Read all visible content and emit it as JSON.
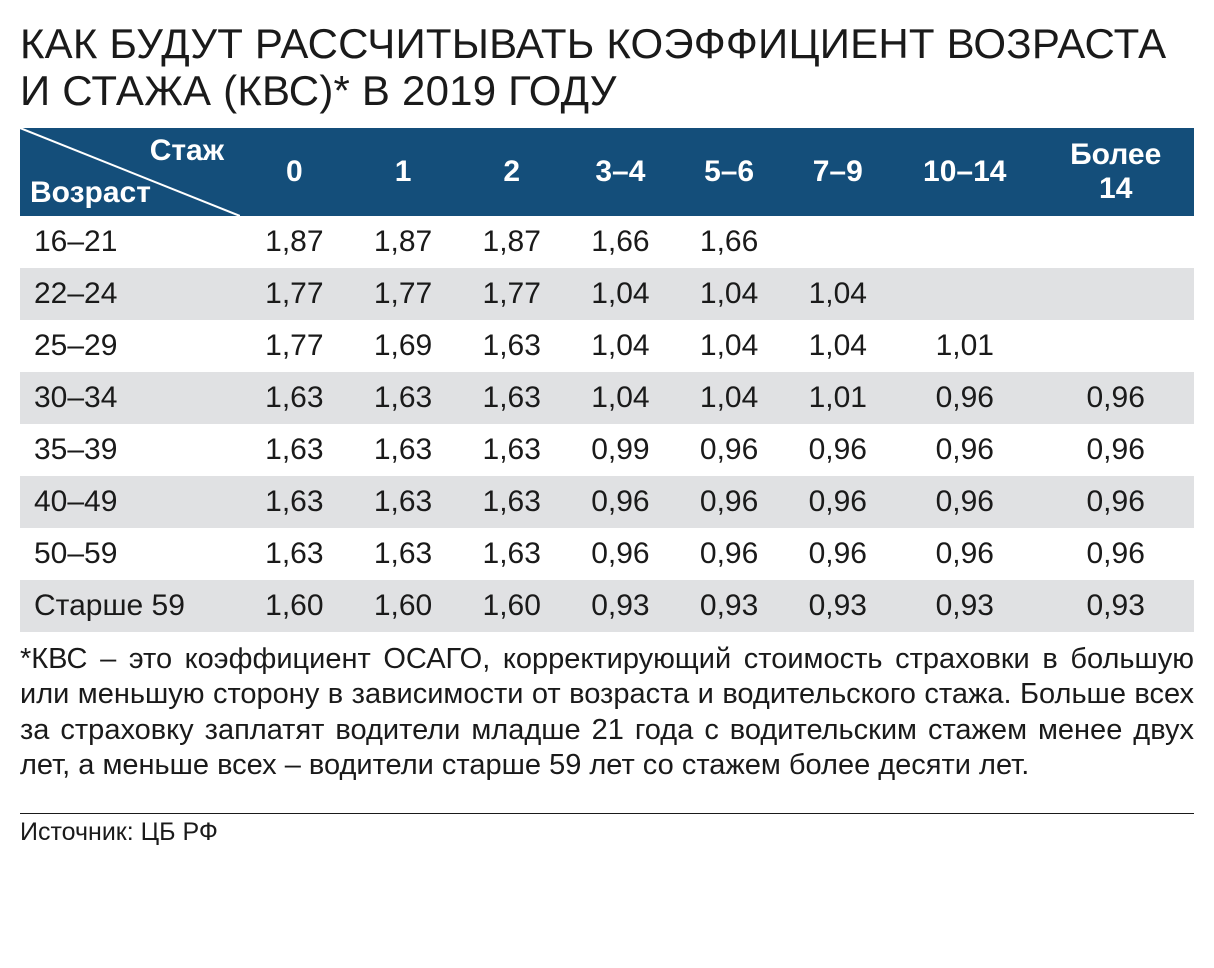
{
  "title": "КАК БУДУТ РАССЧИТЫВАТЬ КОЭФФИЦИЕНТ ВОЗРАСТА И СТАЖА (КВС)* В 2019 ГОДУ",
  "table": {
    "type": "table",
    "corner_top": "Стаж",
    "corner_bottom": "Возраст",
    "header_bg": "#144e7a",
    "header_fg": "#ffffff",
    "row_odd_bg": "#ffffff",
    "row_even_bg": "#e0e1e3",
    "columns": [
      "0",
      "1",
      "2",
      "3–4",
      "5–6",
      "7–9",
      "10–14",
      "Более 14"
    ],
    "rows": [
      {
        "label": "16–21",
        "cells": [
          "1,87",
          "1,87",
          "1,87",
          "1,66",
          "1,66",
          "",
          "",
          ""
        ]
      },
      {
        "label": "22–24",
        "cells": [
          "1,77",
          "1,77",
          "1,77",
          "1,04",
          "1,04",
          "1,04",
          "",
          ""
        ]
      },
      {
        "label": "25–29",
        "cells": [
          "1,77",
          "1,69",
          "1,63",
          "1,04",
          "1,04",
          "1,04",
          "1,01",
          ""
        ]
      },
      {
        "label": "30–34",
        "cells": [
          "1,63",
          "1,63",
          "1,63",
          "1,04",
          "1,04",
          "1,01",
          "0,96",
          "0,96"
        ]
      },
      {
        "label": "35–39",
        "cells": [
          "1,63",
          "1,63",
          "1,63",
          "0,99",
          "0,96",
          "0,96",
          "0,96",
          "0,96"
        ]
      },
      {
        "label": "40–49",
        "cells": [
          "1,63",
          "1,63",
          "1,63",
          "0,96",
          "0,96",
          "0,96",
          "0,96",
          "0,96"
        ]
      },
      {
        "label": "50–59",
        "cells": [
          "1,63",
          "1,63",
          "1,63",
          "0,96",
          "0,96",
          "0,96",
          "0,96",
          "0,96"
        ]
      },
      {
        "label": "Старше 59",
        "cells": [
          "1,60",
          "1,60",
          "1,60",
          "0,93",
          "0,93",
          "0,93",
          "0,93",
          "0,93"
        ]
      }
    ]
  },
  "footnote": "*КВС – это коэффициент ОСАГО, корректирующий стоимость страховки в большую или меньшую сторону в зависимости от возраста и водительского стажа. Больше всех за страховку заплатят водители младше 21 года с водительским стажем менее двух лет, а меньше всех – водители старше 59 лет со стажем более десяти лет.",
  "source": "Источник: ЦБ РФ"
}
